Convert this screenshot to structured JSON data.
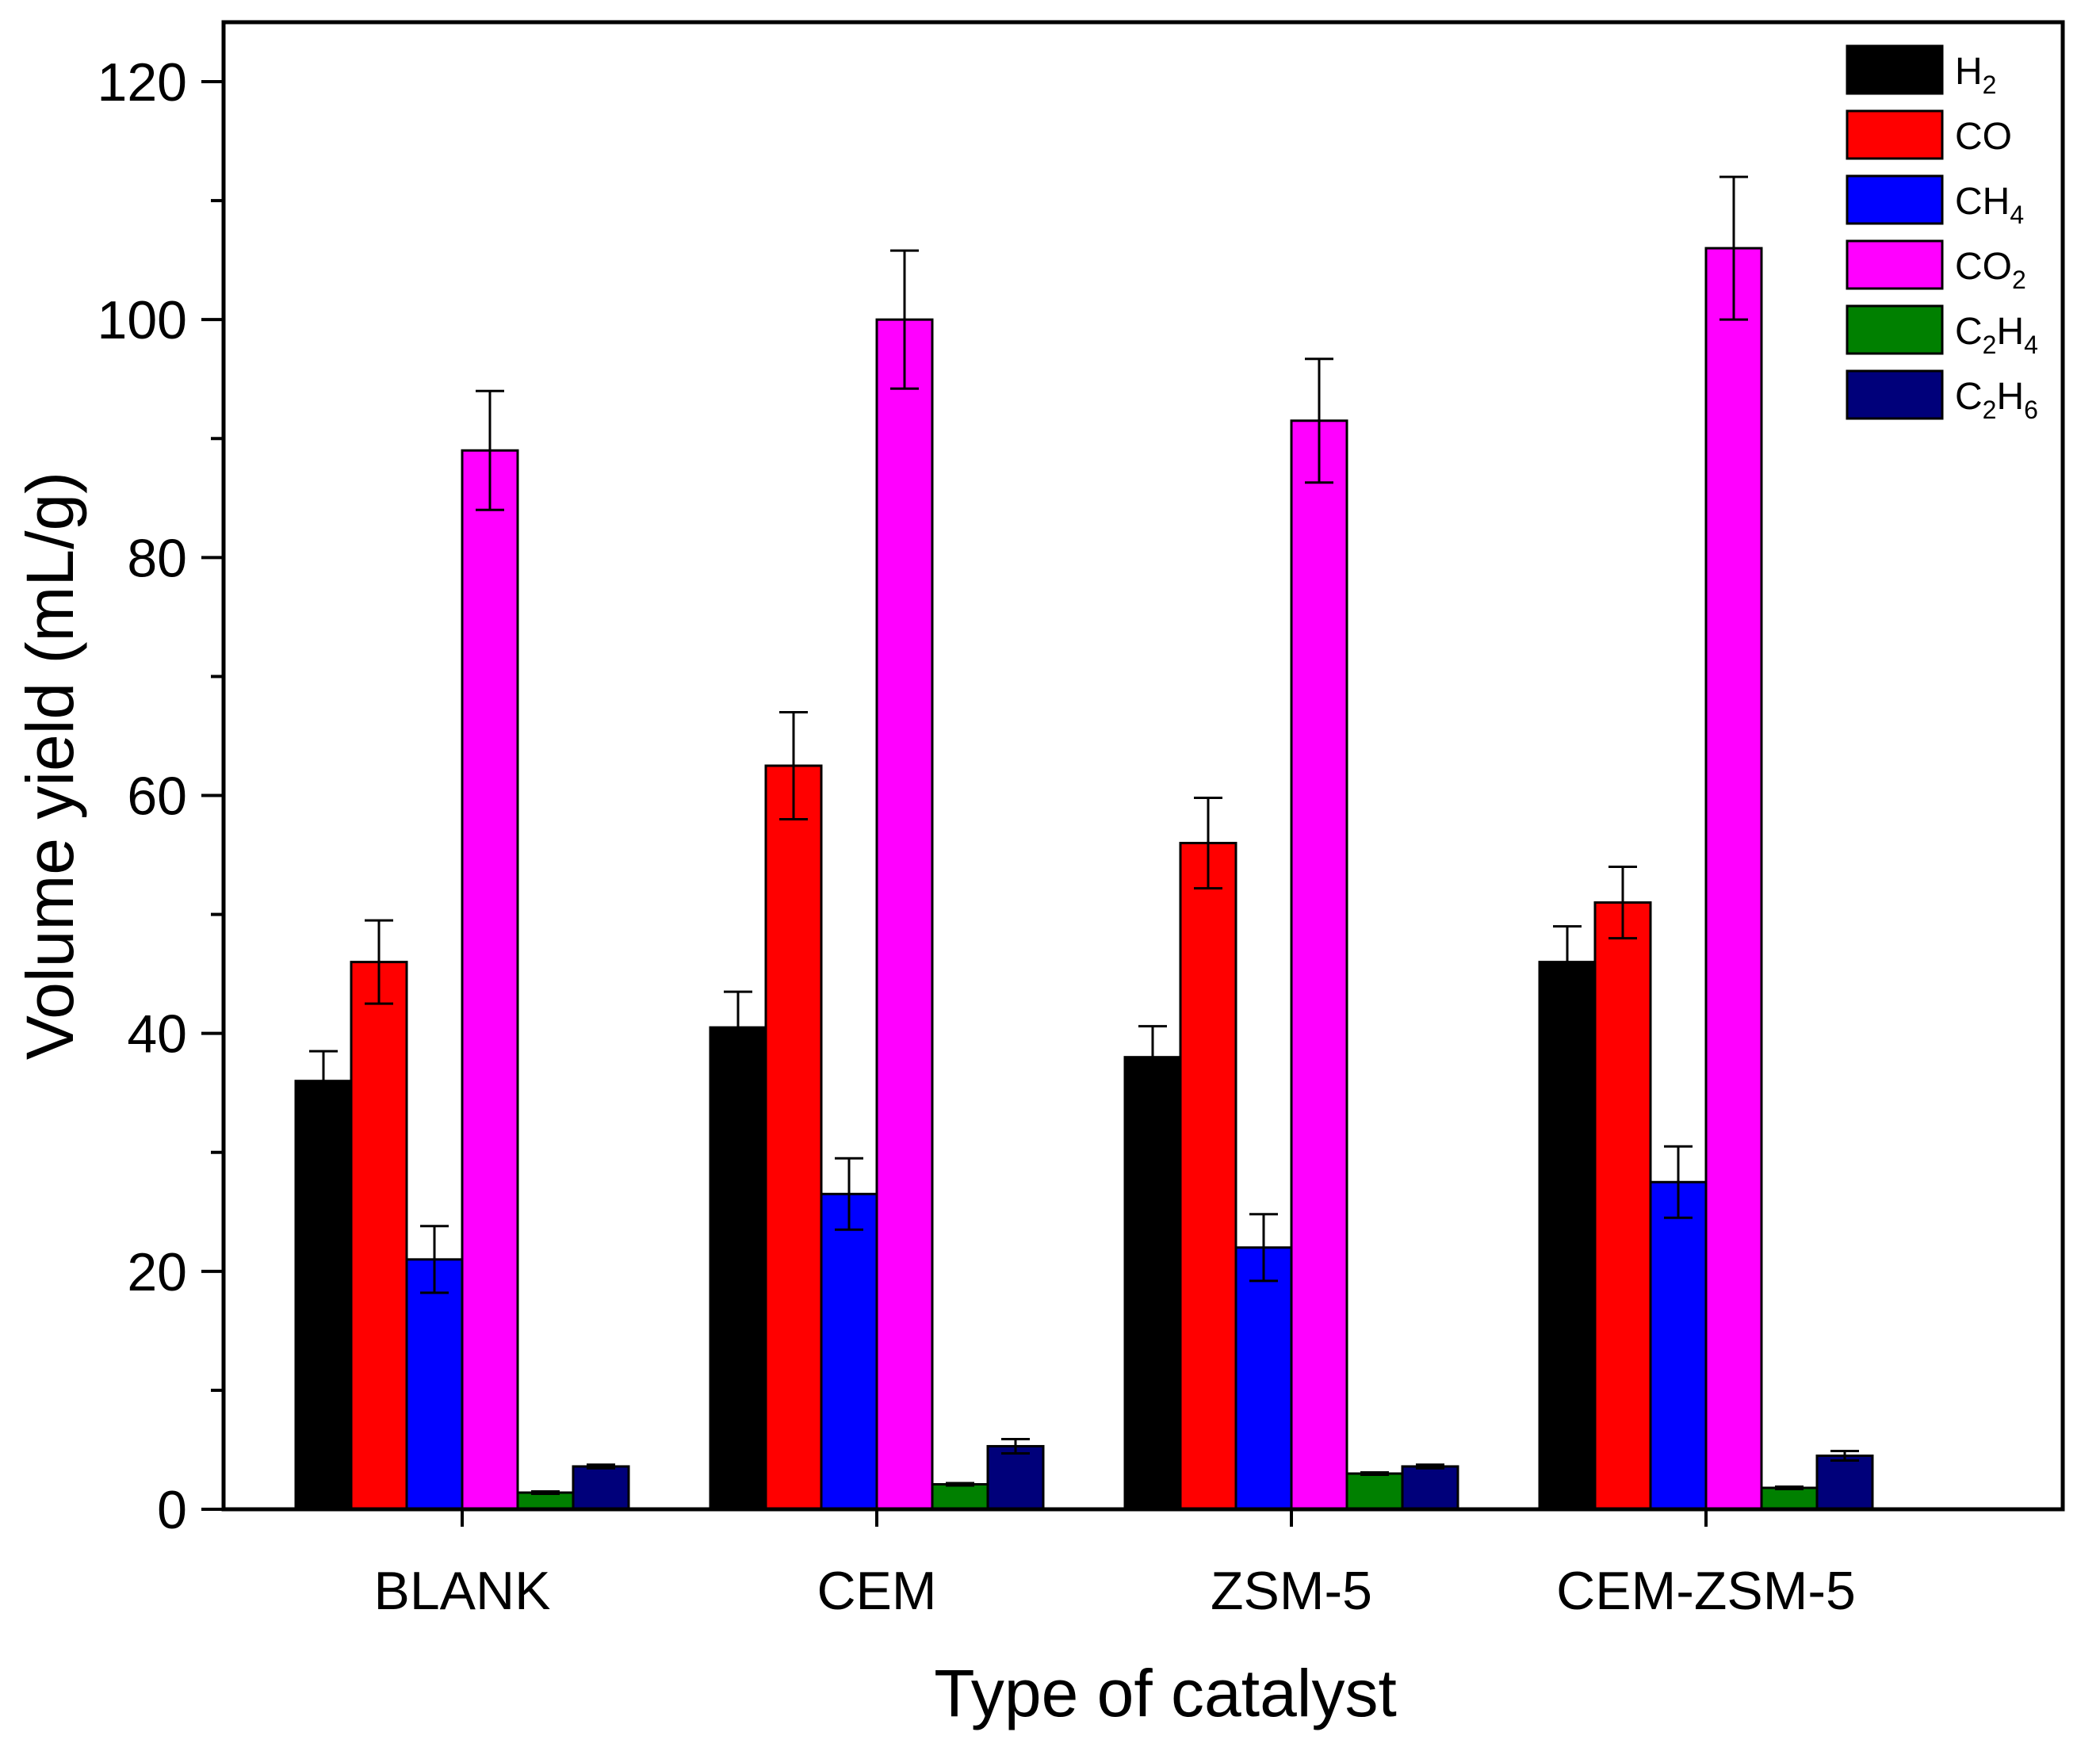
{
  "chart_data": {
    "type": "bar",
    "title": "",
    "xlabel": "Type of catalyst",
    "ylabel": "Volume yield (mL/g)",
    "ylim": [
      0,
      122
    ],
    "yticks": [
      0,
      20,
      40,
      60,
      80,
      100,
      120
    ],
    "categories": [
      "BLANK",
      "CEM",
      "ZSM-5",
      "CEM-ZSM-5"
    ],
    "series": [
      {
        "name": "H2",
        "base": "H",
        "sub": "2",
        "color": "#000000",
        "values": [
          36,
          40.5,
          38,
          46
        ],
        "errors": [
          2.5,
          3,
          2.6,
          3
        ]
      },
      {
        "name": "CO",
        "base": "CO",
        "sub": "",
        "color": "#ff0000",
        "values": [
          46,
          62.5,
          56,
          51
        ],
        "errors": [
          3.5,
          4.5,
          3.8,
          3
        ]
      },
      {
        "name": "CH4",
        "base": "CH",
        "sub": "4",
        "color": "#0000ff",
        "values": [
          21,
          26.5,
          22,
          27.5
        ],
        "errors": [
          2.8,
          3,
          2.8,
          3
        ]
      },
      {
        "name": "CO2",
        "base": "CO",
        "sub": "2",
        "color": "#ff00ff",
        "values": [
          89,
          100,
          91.5,
          106
        ],
        "errors": [
          5,
          5.8,
          5.2,
          6
        ]
      },
      {
        "name": "C2H4",
        "base": "C2H",
        "sub": "4",
        "color": "#008000",
        "values": [
          1.4,
          2.1,
          3.0,
          1.8
        ],
        "errors": [
          0.1,
          0.1,
          0.1,
          0.1
        ]
      },
      {
        "name": "C2H6",
        "base": "C2H",
        "sub": "6",
        "color": "#00007a",
        "values": [
          3.6,
          5.3,
          3.6,
          4.5
        ],
        "errors": [
          0.15,
          0.6,
          0.15,
          0.4
        ]
      }
    ],
    "legend_position": "top-right",
    "grid": false
  }
}
